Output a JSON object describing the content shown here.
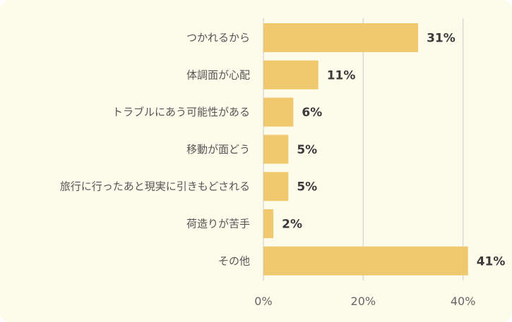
{
  "chart_data": {
    "type": "bar",
    "orientation": "horizontal",
    "categories": [
      "つかれるから",
      "体調面が心配",
      "トラブルにあう可能性がある",
      "移動が面どう",
      "旅行に行ったあと現実に引きもどされる",
      "荷造りが苦手",
      "その他"
    ],
    "values": [
      31,
      11,
      6,
      5,
      5,
      2,
      41
    ],
    "value_labels": [
      "31%",
      "11%",
      "6%",
      "5%",
      "5%",
      "2%",
      "41%"
    ],
    "xlim": [
      0,
      45
    ],
    "x_ticks": [
      0,
      20,
      40
    ],
    "x_tick_labels": [
      "0%",
      "20%",
      "40%"
    ],
    "grid": true,
    "legend": "none",
    "title": "",
    "xlabel": "",
    "ylabel": "",
    "colors": {
      "bar": "#f0c96e",
      "grid": "#d9d9d9",
      "background": "#fdfbea"
    }
  }
}
